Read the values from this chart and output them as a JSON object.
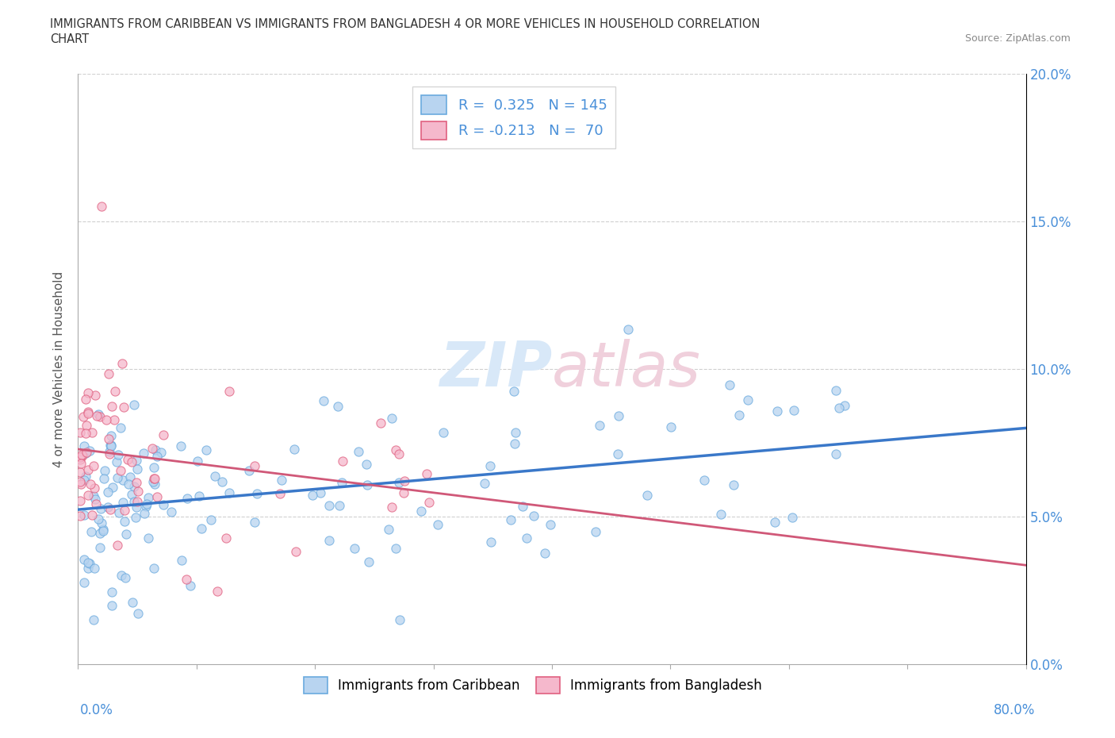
{
  "title_line1": "IMMIGRANTS FROM CARIBBEAN VS IMMIGRANTS FROM BANGLADESH 4 OR MORE VEHICLES IN HOUSEHOLD CORRELATION",
  "title_line2": "CHART",
  "source_text": "Source: ZipAtlas.com",
  "ylabel": "4 or more Vehicles in Household",
  "legend_label1": "Immigrants from Caribbean",
  "legend_label2": "Immigrants from Bangladesh",
  "R1": 0.325,
  "N1": 145,
  "R2": -0.213,
  "N2": 70,
  "color_caribbean_fill": "#b8d4f0",
  "color_caribbean_edge": "#6aaade",
  "color_bangladesh_fill": "#f5b8cc",
  "color_bangladesh_edge": "#e06080",
  "color_line_caribbean": "#3a78c9",
  "color_line_bangladesh": "#d05878",
  "watermark_color": "#d8e8f8",
  "watermark_color2": "#f0d0dc",
  "bg_color": "#ffffff",
  "xmin": 0,
  "xmax": 80,
  "ymin": 0,
  "ymax": 20,
  "ytick_vals": [
    0,
    5,
    10,
    15,
    20
  ],
  "xtick_vals": [
    0,
    10,
    20,
    30,
    40,
    50,
    60,
    70,
    80
  ]
}
